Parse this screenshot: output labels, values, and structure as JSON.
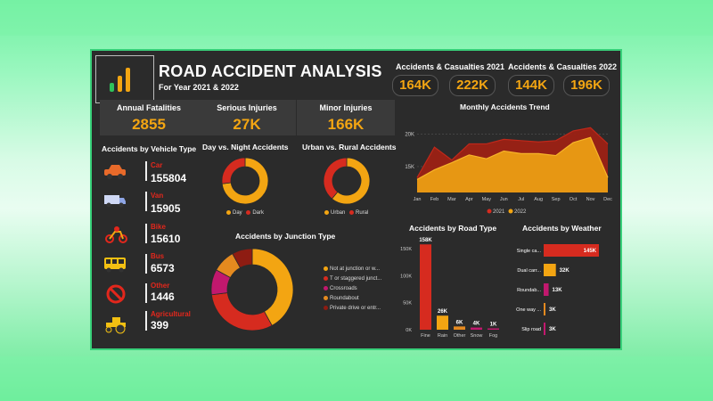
{
  "header": {
    "title": "ROAD ACCIDENT ANALYSIS",
    "subtitle": "For Year 2021 & 2022",
    "cas2021_label": "Accidents & Casualties 2021",
    "cas2022_label": "Accidents & Casualties 2022",
    "acc2021": "164K",
    "casualties2021": "222K",
    "acc2022": "144K",
    "casualties2022": "196K"
  },
  "kpis": [
    {
      "label": "Annual Fatalities",
      "value": "2855"
    },
    {
      "label": "Serious Injuries",
      "value": "27K"
    },
    {
      "label": "Minor Injuries",
      "value": "166K"
    }
  ],
  "vehicles": {
    "heading": "Accidents by Vehicle Type",
    "items": [
      {
        "name": "Car",
        "value": "155804",
        "icon": "car-icon"
      },
      {
        "name": "Van",
        "value": "15905",
        "icon": "van-icon"
      },
      {
        "name": "Bike",
        "value": "15610",
        "icon": "bike-icon"
      },
      {
        "name": "Bus",
        "value": "6573",
        "icon": "bus-icon"
      },
      {
        "name": "Other",
        "value": "1446",
        "icon": "no-entry-icon"
      },
      {
        "name": "Agricultural",
        "value": "399",
        "icon": "tractor-icon"
      }
    ]
  },
  "colors": {
    "orange": "#f3a512",
    "red": "#d62b1f",
    "darkred": "#8e1c12",
    "magenta": "#c2186e",
    "bg": "#2b2b2b"
  },
  "chart_data": [
    {
      "type": "pie",
      "title": "Day vs. Night Accidents",
      "categories": [
        "Day",
        "Dark"
      ],
      "values": [
        73,
        27
      ]
    },
    {
      "type": "pie",
      "title": "Urban vs. Rural Accidents",
      "categories": [
        "Urban",
        "Rural"
      ],
      "values": [
        61,
        39
      ]
    },
    {
      "type": "pie",
      "title": "Accidents by Junction Type",
      "categories": [
        "Not at junction or w...",
        "T or staggered junct...",
        "Crossroads",
        "Roundabout",
        "Private drive or entr..."
      ],
      "values": [
        42,
        31,
        10,
        9,
        8
      ]
    },
    {
      "type": "area",
      "title": "Monthly Accidents Trend",
      "categories": [
        "Jan",
        "Feb",
        "Mar",
        "Apr",
        "May",
        "Jun",
        "Jul",
        "Aug",
        "Sep",
        "Oct",
        "Nov",
        "Dec"
      ],
      "series": [
        {
          "name": "2021",
          "values": [
            13300,
            18000,
            16000,
            18500,
            18500,
            19200,
            19000,
            18800,
            19000,
            20500,
            21000,
            18500
          ]
        },
        {
          "name": "2022",
          "values": [
            13000,
            14500,
            15600,
            16800,
            16200,
            17400,
            17000,
            17000,
            16700,
            18700,
            19500,
            13300
          ]
        }
      ],
      "yticks": [
        "15K",
        "20K"
      ],
      "ylim": [
        11000,
        22000
      ]
    },
    {
      "type": "bar",
      "title": "Accidents by Road Type",
      "categories": [
        "Fine",
        "Rain",
        "Other",
        "Snow",
        "Fog"
      ],
      "values": [
        158000,
        26000,
        6000,
        4000,
        1000
      ],
      "labels": [
        "158K",
        "26K",
        "6K",
        "4K",
        "1K"
      ],
      "yticks": [
        "0K",
        "50K",
        "100K",
        "150K"
      ],
      "ylim": [
        0,
        165000
      ]
    },
    {
      "type": "bar",
      "title": "Accidents by Weather",
      "categories": [
        "Single ca...",
        "Dual carr...",
        "Roundab...",
        "One way ...",
        "Slip road"
      ],
      "values": [
        145000,
        32000,
        13000,
        3000,
        3000
      ],
      "labels": [
        "145K",
        "32K",
        "13K",
        "3K",
        "3K"
      ]
    }
  ]
}
